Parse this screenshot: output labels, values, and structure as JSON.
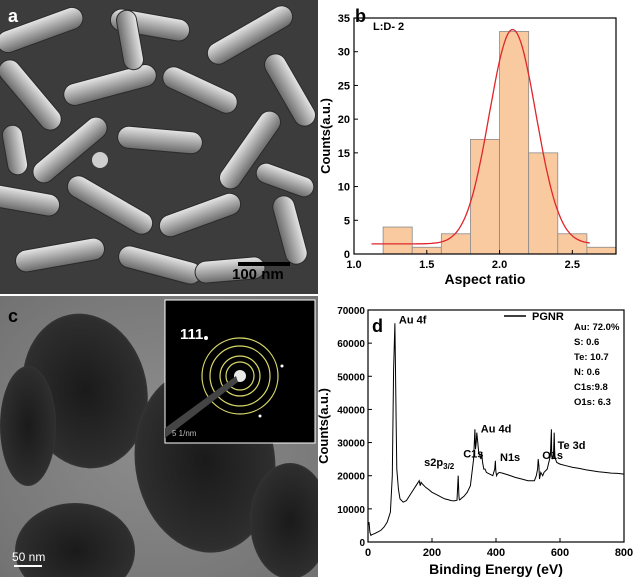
{
  "figure": {
    "panel_a": {
      "label": "a",
      "scale_bar": "100 nm"
    },
    "panel_c": {
      "label": "c",
      "scale_bar": "50 nm",
      "inset_index": "111",
      "inset_scale": "5 1/nm"
    }
  },
  "chart_data": [
    {
      "panel": "b",
      "type": "bar",
      "annotation": "L:D- 2",
      "xlabel": "Aspect ratio",
      "ylabel": "Counts(a.u.)",
      "xlim": [
        1.0,
        2.8
      ],
      "ylim": [
        0,
        35
      ],
      "xticks": [
        1.0,
        1.5,
        2.0,
        2.5
      ],
      "yticks": [
        0,
        5,
        10,
        15,
        20,
        25,
        30,
        35
      ],
      "bin_width": 0.2,
      "bins": [
        1.3,
        1.5,
        1.7,
        1.9,
        2.1,
        2.3,
        2.5,
        2.7
      ],
      "values": [
        4,
        1,
        3,
        17,
        33,
        15,
        3,
        1
      ],
      "bar_color": "#f9c9a0",
      "fit": {
        "type": "gaussian",
        "color": "#e0262b",
        "center": 2.09,
        "sigma": 0.16,
        "amplitude": 31.8,
        "baseline": 1.5,
        "x_range": [
          1.12,
          2.62
        ]
      },
      "grid": false
    },
    {
      "panel": "d",
      "type": "line",
      "legend": "PGNR",
      "legend_position": "top",
      "xlabel": "Binding Energy (eV)",
      "ylabel": "Counts(a.u.)",
      "xlim": [
        0,
        800
      ],
      "ylim": [
        0,
        70000
      ],
      "xticks": [
        0,
        200,
        400,
        600,
        800
      ],
      "yticks": [
        0,
        10000,
        20000,
        30000,
        40000,
        50000,
        60000,
        70000
      ],
      "composition": [
        "Au: 72.0%",
        "S:  0.6",
        "Te: 10.7",
        "N:  0.6",
        "C1s:9.8",
        "O1s: 6.3"
      ],
      "peak_labels": [
        {
          "text": "Au 4f",
          "x": 84,
          "y": 66000
        },
        {
          "text": "s2p3/2",
          "x": 163,
          "y": 23000
        },
        {
          "text": "C1s",
          "x": 285,
          "y": 25500
        },
        {
          "text": "Au 4d",
          "x": 340,
          "y": 33000
        },
        {
          "text": "N1s",
          "x": 400,
          "y": 24500
        },
        {
          "text": "O1s",
          "x": 532,
          "y": 25000
        },
        {
          "text": "Te 3d",
          "x": 580,
          "y": 28000
        }
      ],
      "series": [
        {
          "name": "PGNR",
          "color": "#000000",
          "x": [
            0,
            3,
            6,
            9,
            12,
            20,
            30,
            40,
            50,
            60,
            70,
            76,
            80,
            84,
            86,
            88,
            90,
            95,
            100,
            110,
            120,
            130,
            140,
            150,
            160,
            163,
            166,
            170,
            180,
            190,
            200,
            210,
            220,
            230,
            240,
            250,
            260,
            270,
            278,
            282,
            284,
            285,
            286,
            288,
            292,
            300,
            310,
            320,
            330,
            334,
            336,
            338,
            340,
            344,
            346,
            350,
            353,
            355,
            358,
            362,
            366,
            370,
            380,
            390,
            396,
            398,
            399,
            400,
            402,
            404,
            410,
            420,
            440,
            460,
            480,
            500,
            510,
            520,
            526,
            530,
            532,
            534,
            536,
            540,
            546,
            550,
            560,
            570,
            572,
            573,
            574,
            576,
            580,
            582,
            583,
            584,
            586,
            590,
            600,
            620,
            640,
            660,
            680,
            700,
            720,
            740,
            760,
            780,
            800
          ],
          "y": [
            5000,
            6000,
            3000,
            2000,
            2200,
            2500,
            3000,
            3500,
            4500,
            6000,
            9000,
            20000,
            52000,
            66000,
            52000,
            35000,
            22000,
            16000,
            13000,
            12000,
            12500,
            14000,
            15500,
            17000,
            18500,
            17000,
            18000,
            17500,
            16500,
            15800,
            15000,
            14500,
            14000,
            13500,
            13000,
            12800,
            12500,
            12400,
            12600,
            20000,
            14000,
            13000,
            12700,
            12800,
            13200,
            13800,
            15000,
            17000,
            25000,
            34000,
            28000,
            30000,
            33000,
            29000,
            27000,
            26000,
            25000,
            27000,
            24000,
            22000,
            22000,
            21000,
            20500,
            20000,
            22000,
            24500,
            22000,
            21000,
            20000,
            20500,
            21000,
            20800,
            20200,
            19500,
            19000,
            18500,
            18500,
            18500,
            20000,
            22000,
            25000,
            23000,
            19000,
            21000,
            20000,
            21000,
            22000,
            26000,
            31000,
            34000,
            26000,
            25000,
            27000,
            33000,
            28000,
            26000,
            25000,
            24000,
            23500,
            23000,
            22500,
            22200,
            21800,
            21500,
            21200,
            21000,
            20800,
            20700,
            20500
          ]
        }
      ]
    }
  ]
}
